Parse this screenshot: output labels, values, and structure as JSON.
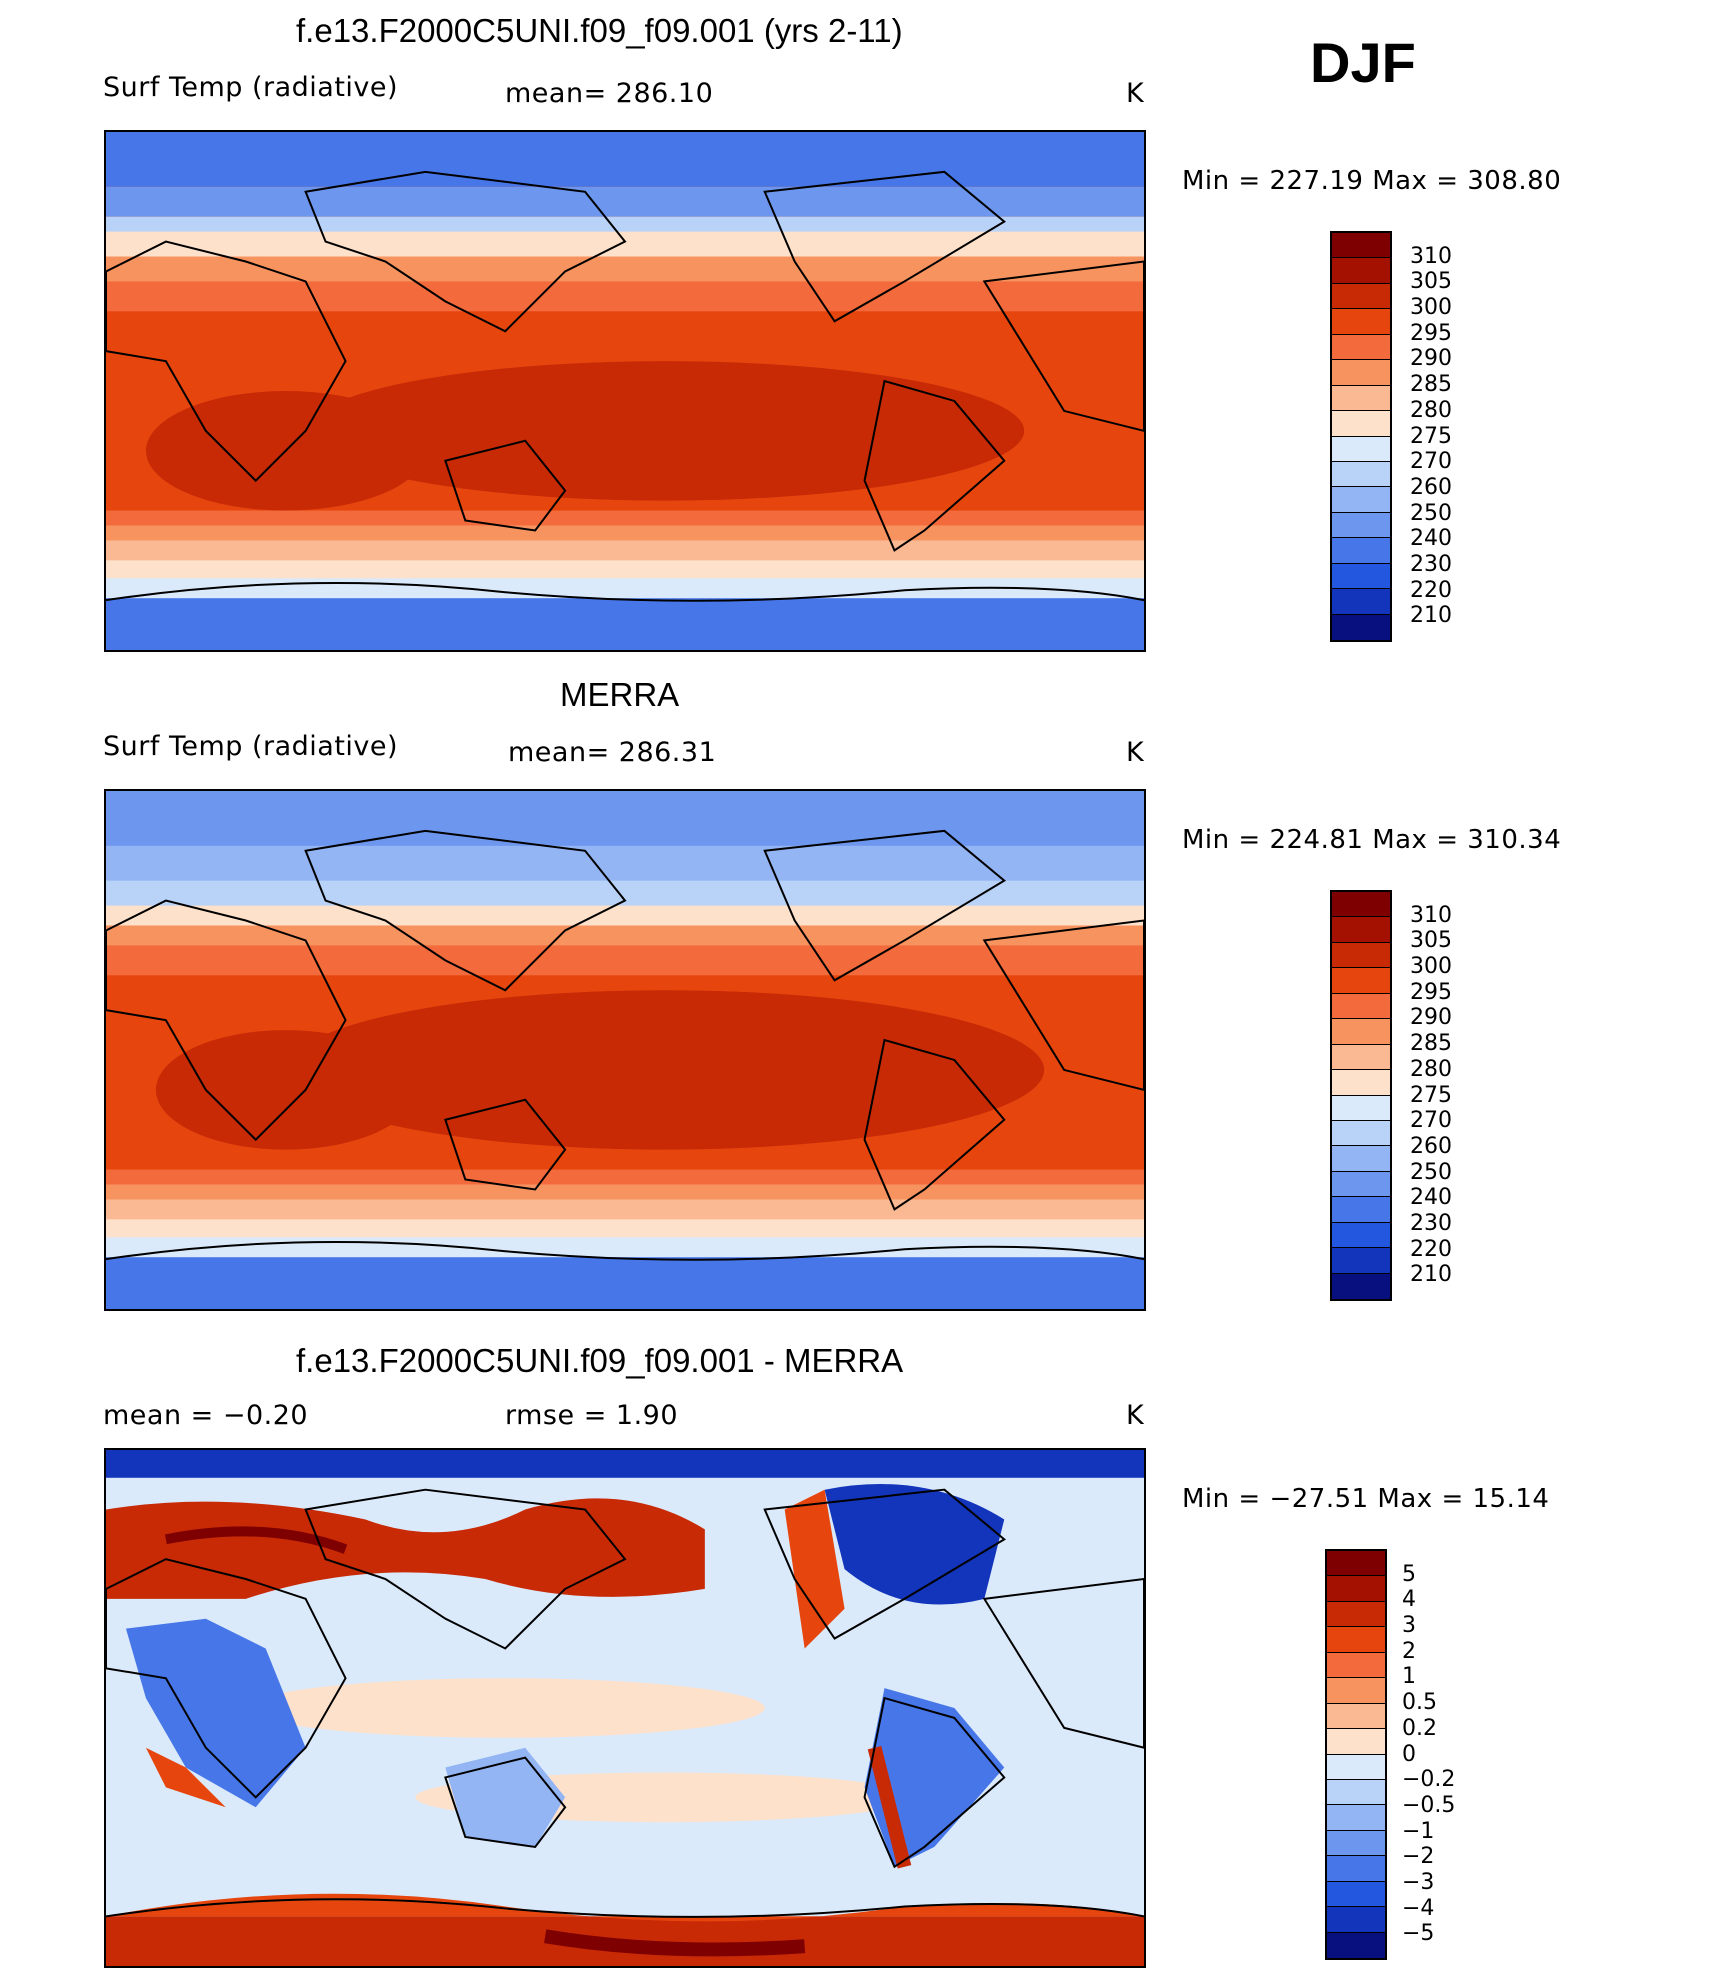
{
  "season": "DJF",
  "panels": [
    {
      "title": "f.e13.F2000C5UNI.f09_f09.001 (yrs 2-11)",
      "variable": "Surf Temp (radiative)",
      "stat": "mean= 286.10",
      "units": "K",
      "minmax": "Min  =  227.19  Max  =  308.80"
    },
    {
      "title": "MERRA",
      "variable": "Surf Temp (radiative)",
      "stat": "mean= 286.31",
      "units": "K",
      "minmax": "Min  =  224.81  Max  =  310.34"
    },
    {
      "title": "f.e13.F2000C5UNI.f09_f09.001 - MERRA",
      "variable": "mean =    −0.20",
      "stat": "rmse =     1.90",
      "units": "K",
      "minmax": "Min  =  −27.51  Max  =    15.14"
    }
  ],
  "colorbars": {
    "temperature": {
      "labels": [
        "310",
        "305",
        "300",
        "295",
        "290",
        "285",
        "280",
        "275",
        "270",
        "260",
        "250",
        "240",
        "230",
        "220",
        "210"
      ],
      "colors": [
        "#7f0000",
        "#a51100",
        "#c82a06",
        "#e6460e",
        "#f36a3c",
        "#f7935f",
        "#fab993",
        "#fde1cb",
        "#dbeafb",
        "#b8d2f8",
        "#93b5f3",
        "#6d96ee",
        "#4776e8",
        "#2357df",
        "#1335bb",
        "#08107f"
      ]
    },
    "difference": {
      "labels": [
        "5",
        "4",
        "3",
        "2",
        "1",
        "0.5",
        "0.2",
        "0",
        "−0.2",
        "−0.5",
        "−1",
        "−2",
        "−3",
        "−4",
        "−5"
      ],
      "colors": [
        "#7f0000",
        "#a51100",
        "#c82a06",
        "#e6460e",
        "#f36a3c",
        "#f7935f",
        "#fab993",
        "#fde1cb",
        "#dbeafb",
        "#b8d2f8",
        "#93b5f3",
        "#6d96ee",
        "#4776e8",
        "#2357df",
        "#1335bb",
        "#08107f"
      ]
    }
  }
}
